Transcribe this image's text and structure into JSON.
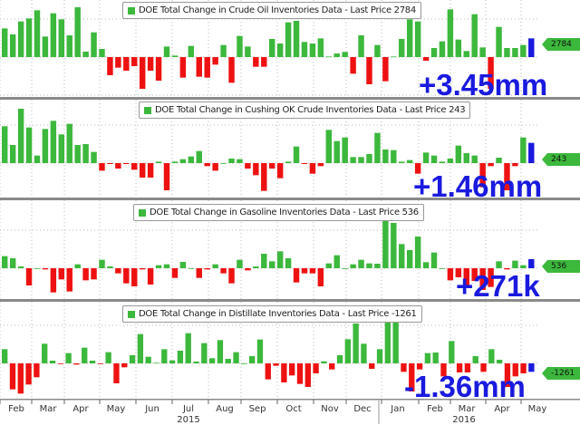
{
  "chart_data": [
    {
      "type": "bar",
      "title": "DOE Total Change in Crude Oil Inventories Data - Last Price 2784",
      "last_price_tag": "2784",
      "annotation": "+3.45mm",
      "values": [
        95,
        75,
        118,
        128,
        155,
        68,
        145,
        125,
        72,
        165,
        18,
        82,
        27,
        -60,
        -35,
        -45,
        -30,
        -105,
        -45,
        -78,
        35,
        5,
        -68,
        37,
        -65,
        -68,
        -25,
        40,
        -85,
        70,
        35,
        -32,
        -32,
        60,
        45,
        115,
        120,
        50,
        45,
        62,
        2,
        12,
        17,
        -55,
        72,
        -90,
        40,
        -80,
        2,
        60,
        125,
        118,
        -12,
        30,
        52,
        158,
        58,
        20,
        142,
        32,
        -105,
        100,
        30,
        30,
        40,
        62
      ]
    },
    {
      "type": "bar",
      "title": "DOE Total Change in Cushing OK Crude Inventories Data - Last Price 243",
      "last_price_tag": "243",
      "annotation": "+1.46mm",
      "values": [
        122,
        60,
        180,
        118,
        25,
        113,
        140,
        95,
        130,
        60,
        63,
        37,
        -25,
        -3,
        -18,
        -3,
        -22,
        -48,
        -48,
        5,
        -90,
        5,
        13,
        22,
        40,
        -10,
        -25,
        0,
        15,
        13,
        -18,
        -40,
        -92,
        -18,
        -50,
        5,
        55,
        -3,
        -35,
        -10,
        110,
        73,
        85,
        20,
        20,
        30,
        100,
        45,
        43,
        5,
        10,
        -35,
        35,
        25,
        5,
        15,
        58,
        33,
        25,
        -80,
        -10,
        18,
        -90,
        -10,
        85,
        67
      ]
    },
    {
      "type": "bar",
      "title": "DOE Total Change in Gasoline Inventories Data - Last Price 536",
      "last_price_tag": "536",
      "annotation": "+271k",
      "values": [
        40,
        33,
        6,
        -57,
        0,
        -4,
        -80,
        -37,
        -77,
        13,
        -40,
        -37,
        28,
        6,
        -17,
        -50,
        -60,
        -4,
        -54,
        10,
        13,
        -32,
        21,
        0,
        -32,
        -4,
        13,
        -17,
        -50,
        28,
        -7,
        6,
        48,
        23,
        56,
        33,
        -47,
        -17,
        -17,
        -60,
        16,
        43,
        0,
        13,
        28,
        16,
        15,
        188,
        150,
        80,
        60,
        105,
        20,
        52,
        0,
        -40,
        -30,
        -62,
        -42,
        -72,
        -62,
        23,
        -4,
        25,
        10,
        30
      ]
    },
    {
      "type": "bar",
      "title": "DOE Total Change in Distillate Inventories Data - Last Price -1261",
      "last_price_tag": "-1261",
      "annotation": "-1.36mm",
      "values": [
        47,
        -86,
        -100,
        -70,
        -46,
        65,
        9,
        -1,
        34,
        -4,
        52,
        9,
        -2,
        37,
        -66,
        -13,
        27,
        97,
        22,
        2,
        47,
        10,
        42,
        100,
        6,
        67,
        17,
        77,
        15,
        37,
        0,
        24,
        79,
        -53,
        -8,
        -63,
        -40,
        -68,
        -78,
        -33,
        7,
        -20,
        27,
        80,
        132,
        65,
        -18,
        47,
        137,
        157,
        -28,
        -93,
        -20,
        34,
        36,
        -43,
        74,
        -30,
        -30,
        24,
        -28,
        47,
        12,
        -78,
        -43,
        -33,
        -28
      ]
    }
  ],
  "x_axis": {
    "months": [
      "Feb",
      "Mar",
      "Apr",
      "May",
      "Jun",
      "Jul",
      "Aug",
      "Sep",
      "Oct",
      "Nov",
      "Dec",
      "Jan",
      "Feb",
      "Mar",
      "Apr",
      "May"
    ],
    "years": [
      "2015",
      "2016"
    ]
  },
  "colors": {
    "positive": "#3cb83c",
    "negative": "#ee1111",
    "latest": "#1a1adf",
    "annotation": "#1a1adf"
  }
}
